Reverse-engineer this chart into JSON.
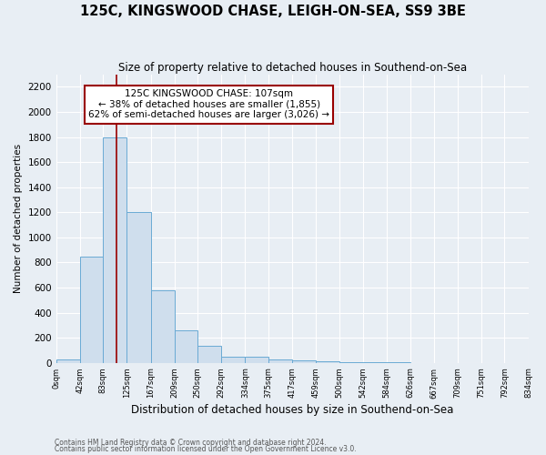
{
  "title": "125C, KINGSWOOD CHASE, LEIGH-ON-SEA, SS9 3BE",
  "subtitle": "Size of property relative to detached houses in Southend-on-Sea",
  "xlabel": "Distribution of detached houses by size in Southend-on-Sea",
  "ylabel": "Number of detached properties",
  "bin_edges": [
    0,
    42,
    83,
    125,
    167,
    209,
    250,
    292,
    334,
    375,
    417,
    459,
    500,
    542,
    584,
    626,
    667,
    709,
    751,
    792,
    834
  ],
  "bar_heights": [
    30,
    850,
    1800,
    1200,
    580,
    260,
    135,
    50,
    45,
    30,
    20,
    10,
    5,
    3,
    2,
    1,
    1,
    1,
    1,
    1
  ],
  "bar_color": "#cfdeed",
  "bar_edge_color": "#6aaad4",
  "vline_x": 107,
  "vline_color": "#990000",
  "ylim": [
    0,
    2300
  ],
  "yticks": [
    0,
    200,
    400,
    600,
    800,
    1000,
    1200,
    1400,
    1600,
    1800,
    2000,
    2200
  ],
  "annotation_text": "125C KINGSWOOD CHASE: 107sqm\n← 38% of detached houses are smaller (1,855)\n62% of semi-detached houses are larger (3,026) →",
  "annotation_box_color": "#990000",
  "footnote1": "Contains HM Land Registry data © Crown copyright and database right 2024.",
  "footnote2": "Contains public sector information licensed under the Open Government Licence v3.0.",
  "background_color": "#e8eef4",
  "grid_color": "#ffffff"
}
